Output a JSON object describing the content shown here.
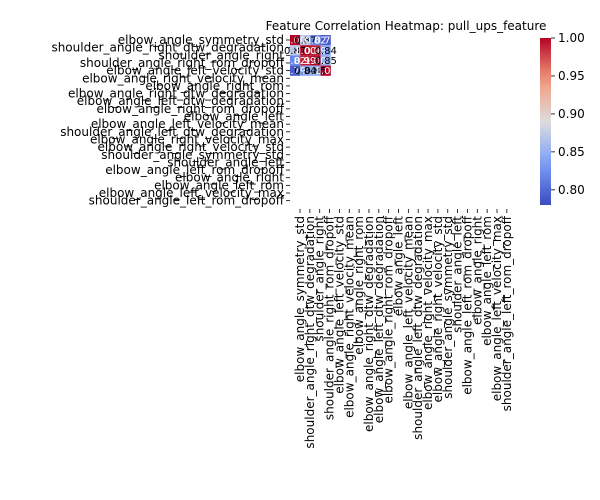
{
  "chart_data": {
    "type": "heatmap",
    "title": "Feature Correlation Heatmap: pull_ups_feature",
    "row_labels": [
      "elbow_angle_symmetry_std",
      "shoulder_angle_right_dtw_degradation",
      "shoulder_angle_right",
      "shoulder_angle_right_rom_dropoff",
      "elbow_angle_left_velocity_std",
      "elbow_angle_right_velocity_mean",
      "elbow_angle_right_rom",
      "elbow_angle_right_dtw_degradation",
      "elbow_angle_left_dtw_degradation",
      "elbow_angle_right_rom_dropoff",
      "elbow_angle_left",
      "elbow_angle_left_velocity_mean",
      "shoulder_angle_left_dtw_degradation",
      "elbow_angle_right_velocity_max",
      "elbow_angle_right_velocity_std",
      "shoulder_angle_symmetry_std",
      "shoulder_angle_left",
      "elbow_angle_left_rom_dropoff",
      "elbow_angle_right",
      "elbow_angle_left_rom",
      "elbow_angle_left_velocity_max",
      "shoulder_angle_left_rom_dropoff"
    ],
    "col_labels": [
      "elbow_angle_symmetry_std",
      "shoulder_angle_right_dtw_degradation",
      "shoulder_angle_right",
      "shoulder_angle_right_rom_dropoff",
      "elbow_angle_left_velocity_std",
      "elbow_angle_right_velocity_mean",
      "elbow_angle_right_rom",
      "elbow_angle_right_dtw_degradation",
      "elbow_angle_left_dtw_degradation",
      "elbow_angle_right_rom_dropoff",
      "elbow_angle_left",
      "elbow_angle_left_velocity_mean",
      "shoulder_angle_left_dtw_degradation",
      "elbow_angle_right_velocity_max",
      "elbow_angle_right_velocity_std",
      "shoulder_angle_symmetry_std",
      "shoulder_angle_left",
      "elbow_angle_left_rom_dropoff",
      "elbow_angle_right",
      "elbow_angle_left_rom",
      "elbow_angle_left_velocity_max",
      "shoulder_angle_left_rom_dropoff"
    ],
    "cells": [
      {
        "row": 0,
        "col": 0,
        "value": 1.0,
        "label": "1.00"
      },
      {
        "row": 0,
        "col": 1,
        "value": 0.87,
        "label": "0.87"
      },
      {
        "row": 0,
        "col": 2,
        "value": 0.82,
        "label": "0.82"
      },
      {
        "row": 0,
        "col": 3,
        "value": 0.79,
        "label": "0.79"
      },
      {
        "row": 1,
        "col": 0,
        "value": 0.87,
        "label": "0.87"
      },
      {
        "row": 1,
        "col": 1,
        "value": 1.0,
        "label": "1.00"
      },
      {
        "row": 1,
        "col": 2,
        "value": 0.99,
        "label": "0.99"
      },
      {
        "row": 1,
        "col": 3,
        "value": 0.84,
        "label": "0.84"
      },
      {
        "row": 2,
        "col": 0,
        "value": 0.82,
        "label": "0.82"
      },
      {
        "row": 2,
        "col": 1,
        "value": 0.99,
        "label": "0.99"
      },
      {
        "row": 2,
        "col": 2,
        "value": 1.0,
        "label": "1.00"
      },
      {
        "row": 2,
        "col": 3,
        "value": 0.85,
        "label": "0.85"
      },
      {
        "row": 3,
        "col": 0,
        "value": 0.79,
        "label": "0.79"
      },
      {
        "row": 3,
        "col": 1,
        "value": 0.84,
        "label": "0.84"
      },
      {
        "row": 3,
        "col": 2,
        "value": 0.85,
        "label": "0.85"
      },
      {
        "row": 3,
        "col": 3,
        "value": 1.0,
        "label": "1.00"
      }
    ],
    "colorbar": {
      "cmap": "coolwarm",
      "vmin": 0.78,
      "vmax": 1.0,
      "ticks": [
        "0.80",
        "0.85",
        "0.90",
        "0.95",
        "1.00"
      ],
      "tick_values": [
        0.8,
        0.85,
        0.9,
        0.95,
        1.0
      ]
    }
  }
}
